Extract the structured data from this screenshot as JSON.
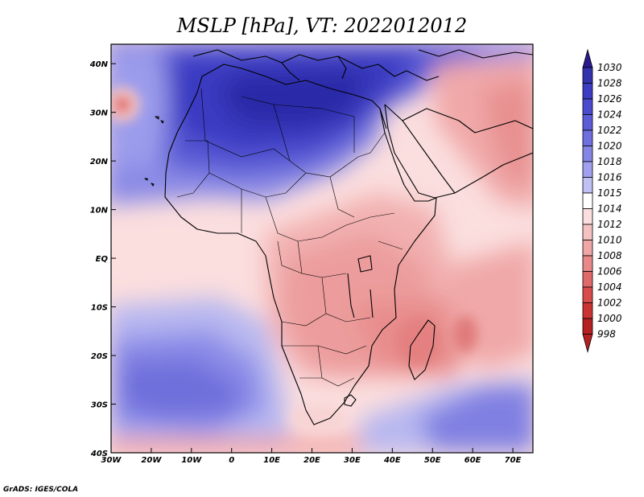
{
  "title": "MSLP [hPa], VT: 2022012012",
  "credit": "GrADS: IGES/COLA",
  "colors": {
    "low": "#a81616",
    "mid_low": "#f0a0a0",
    "neutral": "#ffffff",
    "mid_high": "#9f9ff0",
    "high": "#1a1a8c"
  },
  "chart_data": {
    "type": "heatmap",
    "title": "MSLP [hPa], VT: 2022012012",
    "variable": "MSLP",
    "units": "hPa",
    "valid_time": "2022012012",
    "lon_range": [
      -30,
      75
    ],
    "lat_range": [
      -40,
      44
    ],
    "x_ticks": [
      "30W",
      "20W",
      "10W",
      "0",
      "10E",
      "20E",
      "30E",
      "40E",
      "50E",
      "60E",
      "70E"
    ],
    "y_ticks": [
      "40N",
      "30N",
      "20N",
      "10N",
      "EQ",
      "10S",
      "20S",
      "30S",
      "40S"
    ],
    "colorbar": {
      "levels": [
        998,
        1000,
        1002,
        1004,
        1006,
        1008,
        1010,
        1012,
        1014,
        1015,
        1016,
        1018,
        1020,
        1022,
        1024,
        1026,
        1028,
        1030
      ],
      "labels": [
        "1030",
        "1028",
        "1026",
        "1024",
        "1022",
        "1020",
        "1018",
        "1016",
        "1015",
        "1014",
        "1012",
        "1010",
        "1008",
        "1006",
        "1004",
        "1002",
        "1000",
        "998"
      ],
      "colors": [
        "#2a1a8e",
        "#3333b0",
        "#3d3dc4",
        "#4b4bd0",
        "#5c5cd8",
        "#6f6fe0",
        "#8585e6",
        "#a0a0ee",
        "#c0c0f4",
        "#ffffff",
        "#fbdede",
        "#f5c2c2",
        "#eea6a6",
        "#e88888",
        "#e06a6a",
        "#d84c4c",
        "#cc3434",
        "#b52020"
      ],
      "extend": "both"
    }
  }
}
